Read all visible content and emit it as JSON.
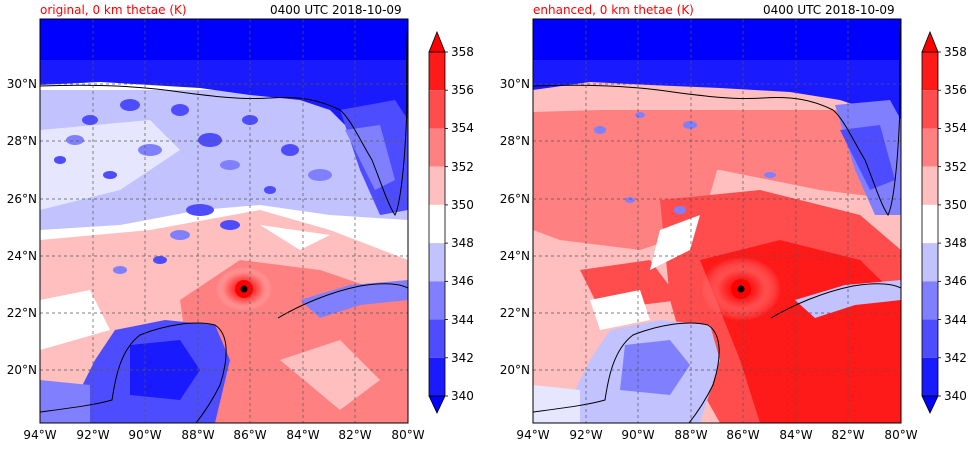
{
  "panels": [
    {
      "title_left": "original, 0 km thetae (K)",
      "title_right": "0400 UTC 2018-10-09",
      "lon_ticks": [
        "94°W",
        "92°W",
        "90°W",
        "88°W",
        "86°W",
        "84°W",
        "82°W",
        "80°W"
      ],
      "lat_ticks": [
        "30°N",
        "28°N",
        "26°N",
        "24°N",
        "22°N",
        "20°N"
      ]
    },
    {
      "title_left": "enhanced, 0 km thetae (K)",
      "title_right": "0400 UTC 2018-10-09",
      "lon_ticks": [
        "94°W",
        "92°W",
        "90°W",
        "88°W",
        "86°W",
        "84°W",
        "82°W",
        "80°W"
      ],
      "lat_ticks": [
        "30°N",
        "28°N",
        "26°N",
        "24°N",
        "22°N",
        "20°N"
      ]
    }
  ],
  "colorbar": {
    "labels": [
      "358",
      "356",
      "354",
      "352",
      "350",
      "348",
      "346",
      "344",
      "342",
      "340"
    ],
    "colors": [
      "#ff1a1a",
      "#ff4d4d",
      "#ff8080",
      "#ffbfbf",
      "#ffffff",
      "#c2c2ff",
      "#8080ff",
      "#4d4dff",
      "#1a1aff"
    ],
    "extend_max_color": "#ff0000",
    "extend_min_color": "#0000ff"
  },
  "storm_center": {
    "lon": "86.3°W",
    "lat": "22.9°N"
  }
}
